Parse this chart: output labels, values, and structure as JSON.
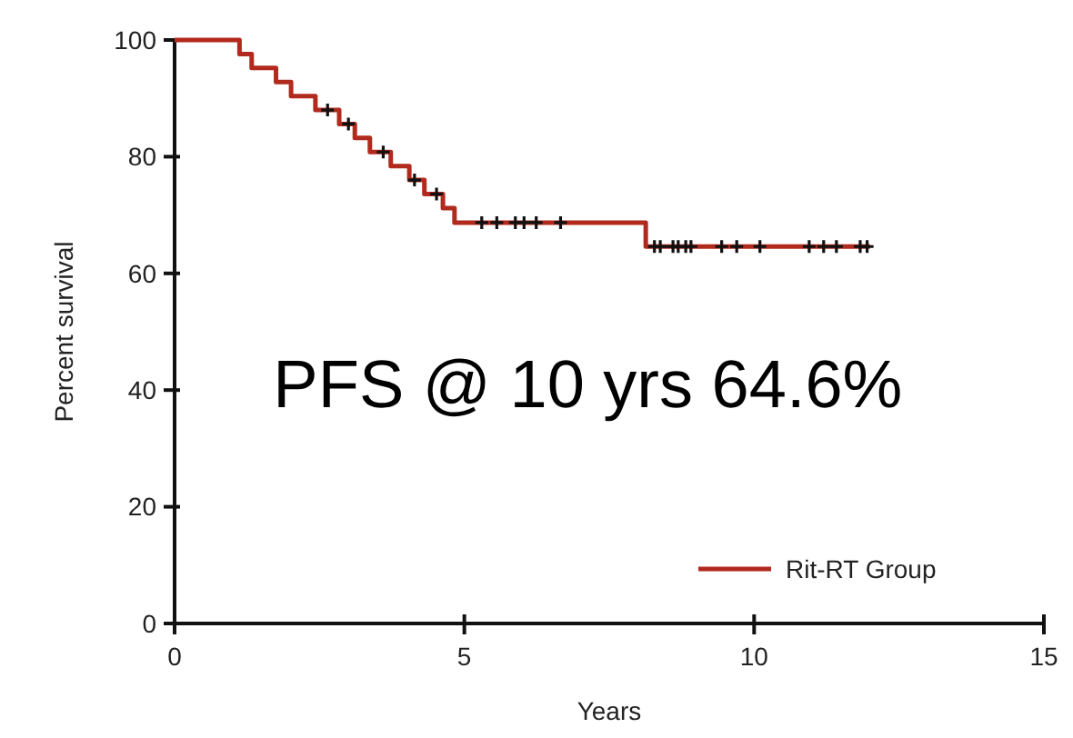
{
  "chart_data": {
    "type": "step",
    "xlabel": "Years",
    "ylabel": "Percent survival",
    "xlim": [
      0,
      15
    ],
    "xticks": [
      0,
      5,
      10,
      15
    ],
    "ylim": [
      0,
      100
    ],
    "yticks": [
      0,
      20,
      40,
      60,
      80,
      100
    ],
    "grid": false,
    "legend": "bottom right",
    "annotations": [
      "PFS @ 10 yrs 64.6%"
    ],
    "series": [
      {
        "name": "Rit-RT Group",
        "color": "#b22a1e",
        "marker": "none",
        "x": [
          0,
          1.12,
          1.33,
          1.75,
          2.01,
          2.43,
          2.84,
          3.11,
          3.37,
          3.73,
          4.05,
          4.31,
          4.63,
          4.83,
          8.13,
          12.0
        ],
        "values": [
          100,
          97.6,
          95.2,
          92.8,
          90.4,
          88.0,
          85.6,
          83.2,
          80.8,
          78.4,
          76.0,
          73.6,
          71.2,
          68.7,
          64.6,
          64.6
        ]
      },
      {
        "type": "scatter",
        "color": "#111111",
        "marker": "cross",
        "x": [
          2.64,
          3.0,
          3.6,
          4.14,
          4.52,
          5.3,
          5.56,
          5.88,
          6.03,
          6.24,
          6.66,
          8.28,
          8.38,
          8.6,
          8.69,
          8.82,
          8.91,
          9.44,
          9.7,
          10.1,
          10.95,
          11.2,
          11.42,
          11.83,
          11.95
        ],
        "values": [
          88.0,
          85.6,
          80.8,
          76.0,
          73.6,
          68.7,
          68.7,
          68.7,
          68.7,
          68.7,
          68.7,
          64.6,
          64.6,
          64.6,
          64.6,
          64.6,
          64.6,
          64.6,
          64.6,
          64.6,
          64.6,
          64.6,
          64.6,
          64.6,
          64.6
        ]
      }
    ]
  }
}
